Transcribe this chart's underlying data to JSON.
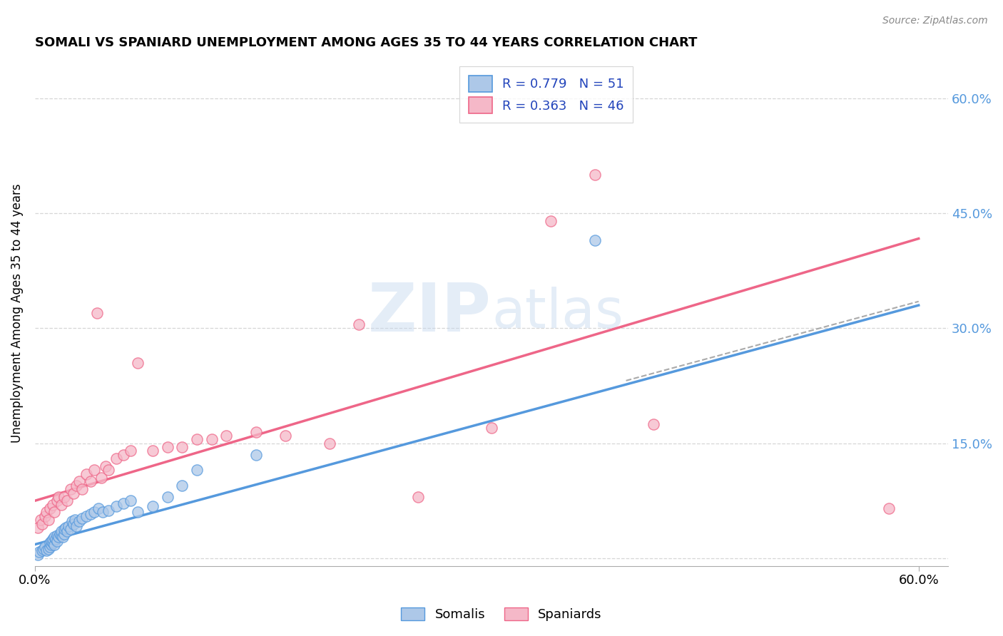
{
  "title": "SOMALI VS SPANIARD UNEMPLOYMENT AMONG AGES 35 TO 44 YEARS CORRELATION CHART",
  "source": "Source: ZipAtlas.com",
  "ylabel": "Unemployment Among Ages 35 to 44 years",
  "xlim": [
    0.0,
    0.62
  ],
  "ylim": [
    -0.01,
    0.65
  ],
  "x_ticks": [
    0.0,
    0.6
  ],
  "x_tick_labels": [
    "0.0%",
    "60.0%"
  ],
  "y_ticks_right": [
    0.0,
    0.15,
    0.3,
    0.45,
    0.6
  ],
  "y_tick_labels_right": [
    "",
    "15.0%",
    "30.0%",
    "45.0%",
    "60.0%"
  ],
  "somali_R": 0.779,
  "somali_N": 51,
  "spaniard_R": 0.363,
  "spaniard_N": 46,
  "somali_color": "#adc8e8",
  "spaniard_color": "#f5b8c8",
  "somali_line_color": "#5599dd",
  "spaniard_line_color": "#ee6688",
  "legend_text_color": "#2244bb",
  "somali_intercept": 0.018,
  "somali_slope": 0.52,
  "spaniard_intercept": 0.075,
  "spaniard_slope": 0.57,
  "somali_x": [
    0.002,
    0.003,
    0.005,
    0.006,
    0.007,
    0.008,
    0.009,
    0.01,
    0.01,
    0.011,
    0.011,
    0.012,
    0.012,
    0.013,
    0.013,
    0.014,
    0.015,
    0.015,
    0.016,
    0.017,
    0.018,
    0.018,
    0.019,
    0.02,
    0.02,
    0.021,
    0.022,
    0.023,
    0.024,
    0.025,
    0.026,
    0.027,
    0.028,
    0.03,
    0.032,
    0.035,
    0.038,
    0.04,
    0.043,
    0.046,
    0.05,
    0.055,
    0.06,
    0.065,
    0.07,
    0.08,
    0.09,
    0.1,
    0.11,
    0.15,
    0.38
  ],
  "somali_y": [
    0.005,
    0.008,
    0.01,
    0.012,
    0.015,
    0.01,
    0.012,
    0.015,
    0.02,
    0.018,
    0.022,
    0.02,
    0.025,
    0.018,
    0.028,
    0.025,
    0.03,
    0.022,
    0.028,
    0.032,
    0.03,
    0.035,
    0.028,
    0.032,
    0.038,
    0.04,
    0.035,
    0.042,
    0.038,
    0.048,
    0.045,
    0.05,
    0.042,
    0.048,
    0.052,
    0.055,
    0.058,
    0.06,
    0.065,
    0.06,
    0.062,
    0.068,
    0.072,
    0.075,
    0.06,
    0.068,
    0.08,
    0.095,
    0.115,
    0.135,
    0.415
  ],
  "spaniard_x": [
    0.002,
    0.004,
    0.005,
    0.007,
    0.008,
    0.009,
    0.01,
    0.012,
    0.013,
    0.015,
    0.016,
    0.018,
    0.02,
    0.022,
    0.024,
    0.026,
    0.028,
    0.03,
    0.032,
    0.035,
    0.038,
    0.04,
    0.042,
    0.045,
    0.048,
    0.05,
    0.055,
    0.06,
    0.065,
    0.07,
    0.08,
    0.09,
    0.1,
    0.11,
    0.12,
    0.13,
    0.15,
    0.17,
    0.2,
    0.22,
    0.26,
    0.31,
    0.35,
    0.38,
    0.42,
    0.58
  ],
  "spaniard_y": [
    0.04,
    0.05,
    0.045,
    0.055,
    0.06,
    0.05,
    0.065,
    0.07,
    0.06,
    0.075,
    0.08,
    0.07,
    0.08,
    0.075,
    0.09,
    0.085,
    0.095,
    0.1,
    0.09,
    0.11,
    0.1,
    0.115,
    0.32,
    0.105,
    0.12,
    0.115,
    0.13,
    0.135,
    0.14,
    0.255,
    0.14,
    0.145,
    0.145,
    0.155,
    0.155,
    0.16,
    0.165,
    0.16,
    0.15,
    0.305,
    0.08,
    0.17,
    0.44,
    0.5,
    0.175,
    0.065
  ]
}
